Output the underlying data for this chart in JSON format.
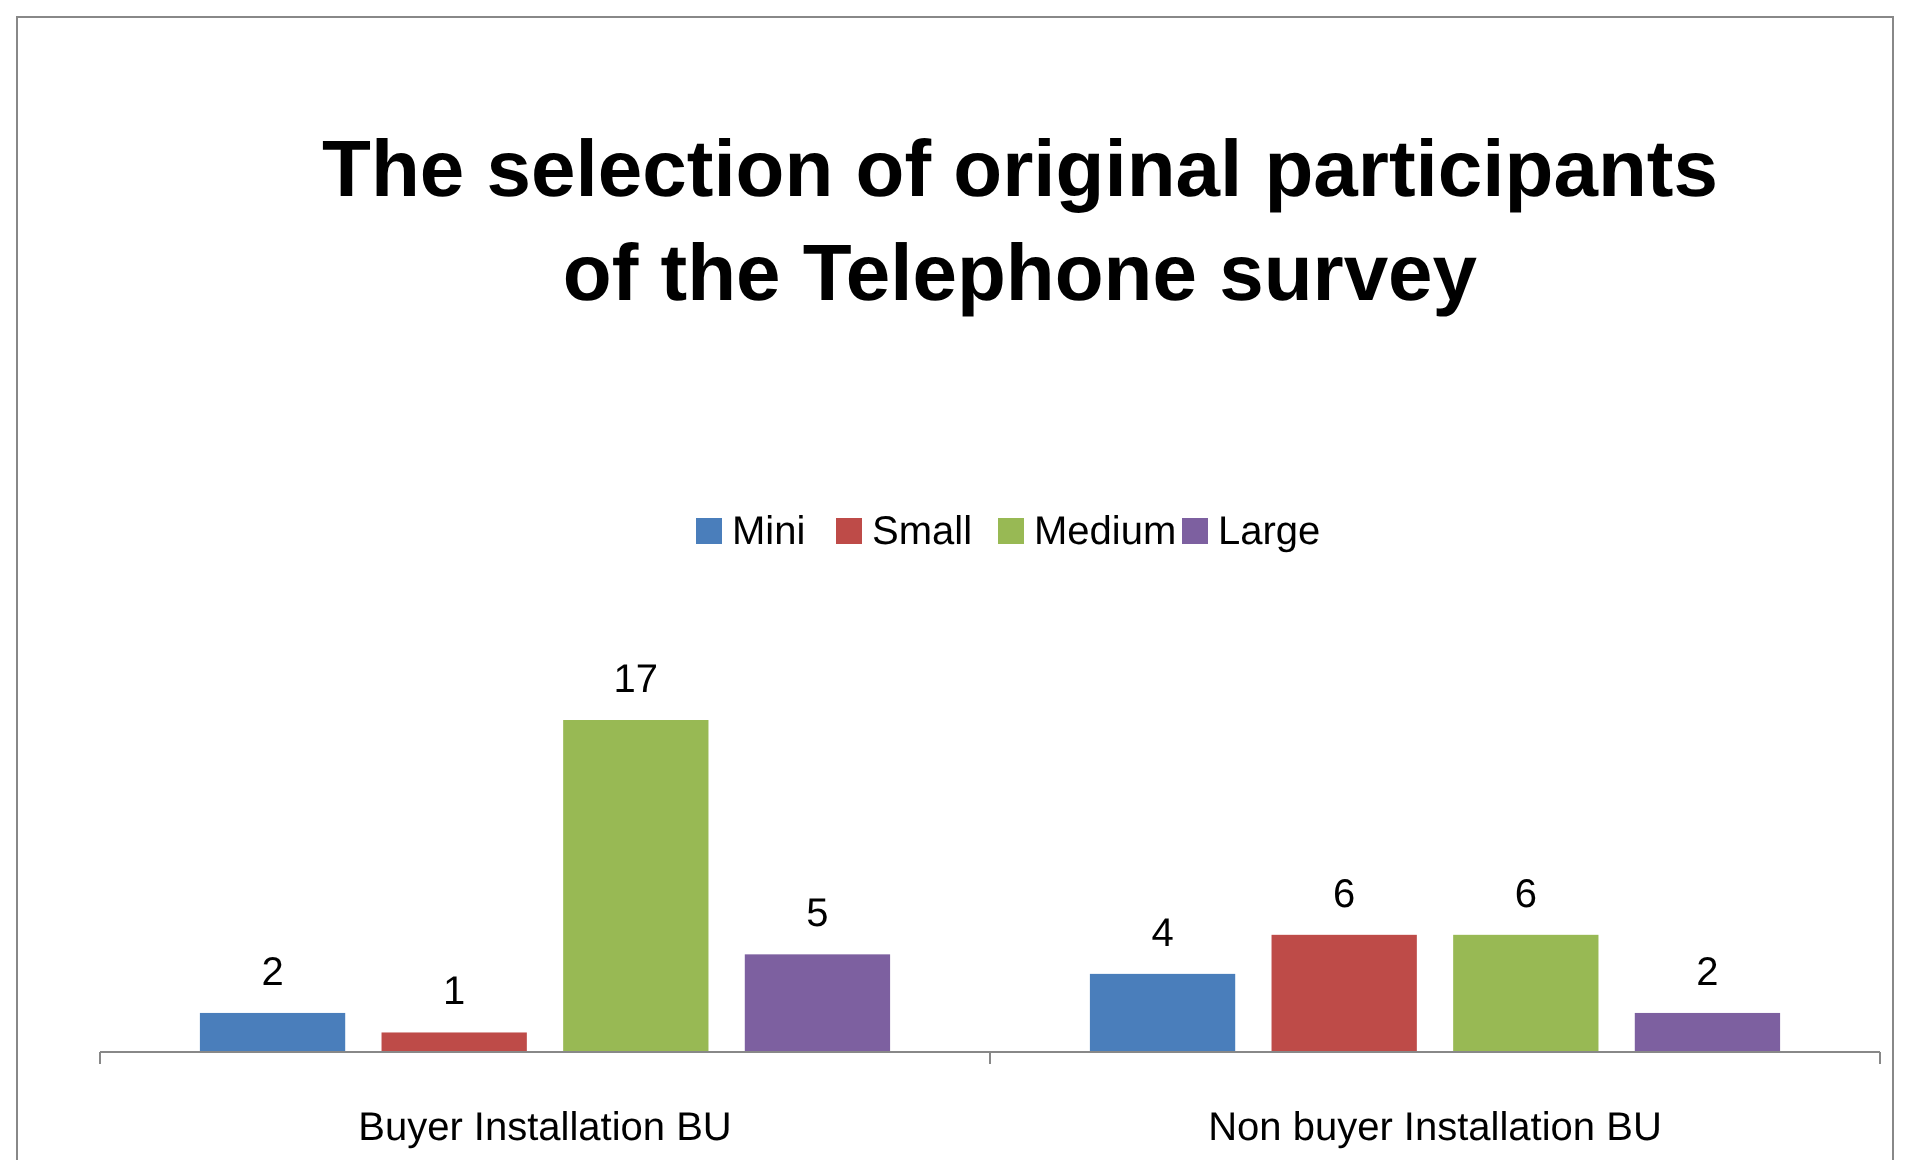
{
  "chart_data": {
    "type": "bar",
    "title": "The selection of original participants of the Telephone survey",
    "categories": [
      "Buyer Installation BU",
      "Non buyer Installation BU"
    ],
    "series": [
      {
        "name": "Mini",
        "color": "#4a7ebb",
        "values": [
          2,
          4
        ]
      },
      {
        "name": "Small",
        "color": "#be4b48",
        "values": [
          1,
          6
        ]
      },
      {
        "name": "Medium",
        "color": "#98b954",
        "values": [
          17,
          6
        ]
      },
      {
        "name": "Large",
        "color": "#7d60a0",
        "values": [
          5,
          2
        ]
      }
    ],
    "data_labels": true,
    "legend": "top",
    "grid": false
  }
}
